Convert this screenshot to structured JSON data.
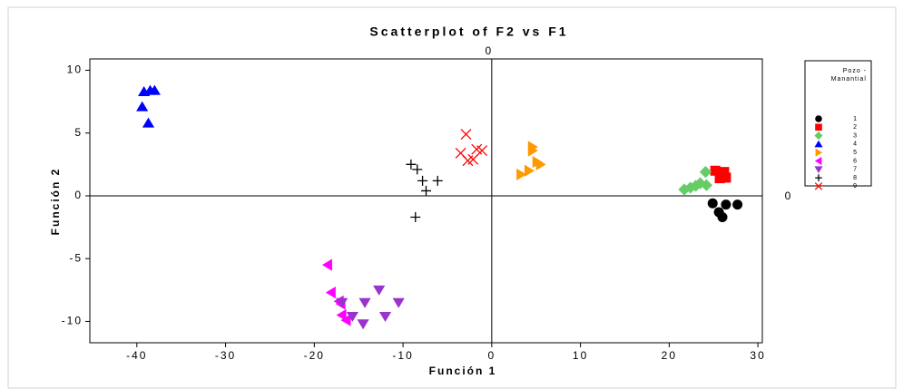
{
  "chart_data": {
    "type": "scatter",
    "title": "Scatterplot of F2 vs F1",
    "x_label": "Función 1",
    "y_label": "Función 2",
    "xlim": [
      -45.3,
      30.5
    ],
    "ylim": [
      -11.7,
      10.9
    ],
    "xticks": [
      -40,
      -30,
      -20,
      -10,
      0,
      10,
      20,
      30
    ],
    "yticks": [
      -10,
      -5,
      0,
      5,
      10
    ],
    "ref_lines": [
      {
        "axis": "x",
        "value": 0
      },
      {
        "axis": "y",
        "value": 0
      }
    ],
    "legend_title": [
      "Pozo -",
      "Manantial"
    ],
    "series": [
      {
        "name": "1",
        "color": "#000000",
        "marker": "circle",
        "x": [
          24.9,
          25.6,
          26.4,
          26.0,
          27.7
        ],
        "values": [
          -0.6,
          -1.3,
          -0.7,
          -1.7,
          -0.7
        ]
      },
      {
        "name": "2",
        "color": "#ff0000",
        "marker": "square",
        "x": [
          25.2,
          25.8,
          26.2,
          25.7,
          26.4
        ],
        "values": [
          2.0,
          1.7,
          1.9,
          1.4,
          1.45
        ]
      },
      {
        "name": "3",
        "color": "#66cc66",
        "marker": "diamond",
        "x": [
          21.7,
          22.4,
          23.0,
          23.5,
          24.2,
          24.1
        ],
        "values": [
          0.5,
          0.65,
          0.8,
          1.0,
          0.85,
          1.9
        ]
      },
      {
        "name": "4",
        "color": "#0000ff",
        "marker": "triangle-up",
        "x": [
          -39.2,
          -38.5,
          -38.0,
          -39.4,
          -38.7
        ],
        "values": [
          8.3,
          8.4,
          8.4,
          7.1,
          5.8
        ]
      },
      {
        "name": "5",
        "color": "#ff9900",
        "marker": "triangle-right",
        "x": [
          3.3,
          4.2,
          4.6,
          4.6,
          5.1,
          5.5
        ],
        "values": [
          1.7,
          2.0,
          3.9,
          3.6,
          2.7,
          2.5
        ]
      },
      {
        "name": "6",
        "color": "#ff00ff",
        "marker": "triangle-left",
        "x": [
          -18.5,
          -18.1,
          -17.2,
          -17.0,
          -16.9,
          -16.4
        ],
        "values": [
          -5.5,
          -7.7,
          -8.4,
          -8.6,
          -9.5,
          -9.9
        ]
      },
      {
        "name": "7",
        "color": "#9933cc",
        "marker": "triangle-down",
        "x": [
          -15.7,
          -14.5,
          -14.3,
          -12.7,
          -12.0,
          -10.5,
          -16.9
        ],
        "values": [
          -9.6,
          -10.2,
          -8.5,
          -7.5,
          -9.6,
          -8.5,
          -8.5
        ]
      },
      {
        "name": "8",
        "color": "#000000",
        "marker": "plus",
        "x": [
          -9.1,
          -8.4,
          -7.8,
          -7.4,
          -6.1,
          -8.6
        ],
        "values": [
          2.5,
          2.1,
          1.2,
          0.4,
          1.2,
          -1.7
        ]
      },
      {
        "name": "9",
        "color": "#ff0000",
        "marker": "cross",
        "x": [
          -2.9,
          -3.5,
          -2.7,
          -2.1,
          -1.7,
          -1.1
        ],
        "values": [
          4.9,
          3.4,
          2.8,
          2.9,
          3.7,
          3.6
        ]
      }
    ]
  }
}
